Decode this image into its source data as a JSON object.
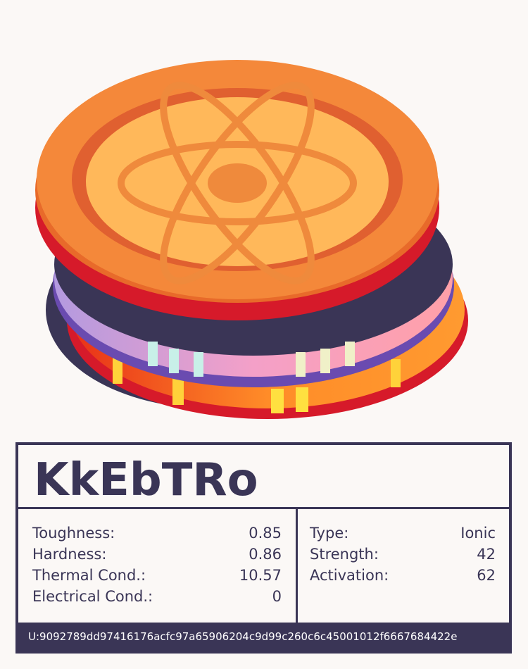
{
  "title": "KkEbTRo",
  "properties": [
    {
      "label": "Toughness:",
      "value": "0.85"
    },
    {
      "label": "Hardness:",
      "value": "0.86"
    },
    {
      "label": "Thermal Cond.:",
      "value": "10.57"
    },
    {
      "label": "Electrical Cond.:",
      "value": "0"
    }
  ],
  "bonding": [
    {
      "label": "Type:",
      "value": "Ionic"
    },
    {
      "label": "Strength:",
      "value": "42"
    },
    {
      "label": "Activation:",
      "value": "62"
    }
  ],
  "footer": "U:9092789dd97416176acfc97a65906204c9d99c260c6c45001012f6667684422e"
}
